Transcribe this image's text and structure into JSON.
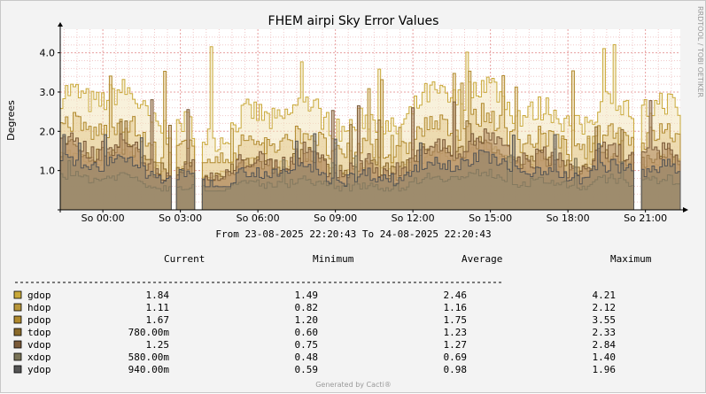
{
  "chart_data": {
    "type": "area",
    "title": "FHEM airpi Sky Error Values",
    "ylabel": "Degrees",
    "ylim": [
      0,
      4.6
    ],
    "yticks": [
      "1.0",
      "2.0",
      "3.0",
      "4.0"
    ],
    "ytick_values": [
      1.0,
      2.0,
      3.0,
      4.0
    ],
    "xticks": [
      "So 00:00",
      "So 03:00",
      "So 06:00",
      "So 09:00",
      "So 12:00",
      "So 15:00",
      "So 18:00",
      "So 21:00"
    ],
    "xtick_hours": [
      1.65,
      4.65,
      7.65,
      10.65,
      13.65,
      16.65,
      19.65,
      22.65
    ],
    "x_range_hours": [
      0,
      24
    ],
    "time_range": "From 23-08-2025 22:20:43 To 24-08-2025 22:20:43",
    "watermark": "RRDTOOL / TOBI OETIKER",
    "footer": "Generated by Cacti®",
    "grid": true,
    "columns": [
      "Current",
      "Minimum",
      "Average",
      "Maximum"
    ],
    "series": [
      {
        "name": "gdop",
        "color": "#c9a93a",
        "fill": "#f3e6bd",
        "current": "1.84",
        "minimum": "1.49",
        "average": "2.46",
        "maximum": "4.21",
        "avg": 2.46,
        "max": 4.21,
        "min": 1.49
      },
      {
        "name": "hdop",
        "color": "#b8963a",
        "fill": "#ead7a6",
        "current": "1.11",
        "minimum": "0.82",
        "average": "1.16",
        "maximum": "2.12",
        "avg": 1.16,
        "max": 2.12,
        "min": 0.82
      },
      {
        "name": "pdop",
        "color": "#b08a2e",
        "fill": "#e4c98c",
        "current": "1.67",
        "minimum": "1.20",
        "average": "1.75",
        "maximum": "3.55",
        "avg": 1.75,
        "max": 3.55,
        "min": 1.2
      },
      {
        "name": "tdop",
        "color": "#8a6a2a",
        "fill": "#c4a06a",
        "current": "780.00m",
        "minimum": "0.60",
        "average": "1.23",
        "maximum": "2.33",
        "avg": 1.23,
        "max": 2.33,
        "min": 0.6
      },
      {
        "name": "vdop",
        "color": "#7a5a38",
        "fill": "#b08a66",
        "current": "1.25",
        "minimum": "0.75",
        "average": "1.27",
        "maximum": "2.84",
        "avg": 1.27,
        "max": 2.84,
        "min": 0.75
      },
      {
        "name": "xdop",
        "color": "#7a7458",
        "fill": "#a89a78",
        "current": "580.00m",
        "minimum": "0.48",
        "average": "0.69",
        "maximum": "1.40",
        "avg": 0.69,
        "max": 1.4,
        "min": 0.48
      },
      {
        "name": "ydop",
        "color": "#555555",
        "fill": "#8c7d66",
        "current": "940.00m",
        "minimum": "0.59",
        "average": "0.98",
        "maximum": "1.96",
        "avg": 0.98,
        "max": 1.96,
        "min": 0.59
      }
    ],
    "gaps_hours": [
      [
        4.2,
        4.4
      ],
      [
        5.2,
        5.45
      ],
      [
        22.2,
        22.45
      ]
    ]
  }
}
